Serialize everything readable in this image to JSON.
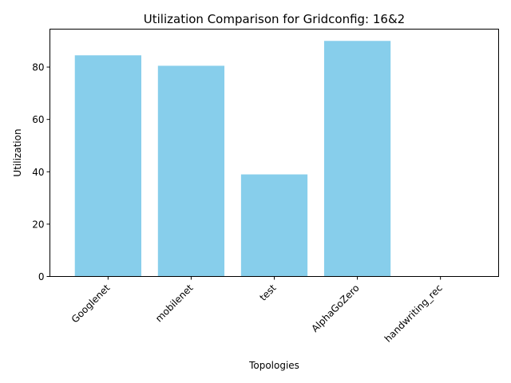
{
  "chart_data": {
    "type": "bar",
    "title": "Utilization Comparison for Gridconfig: 16&2",
    "xlabel": "Topologies",
    "ylabel": "Utilization",
    "categories": [
      "Googlenet",
      "mobilenet",
      "test",
      "AlphaGoZero",
      "handwriting_rec"
    ],
    "values": [
      84.5,
      80.5,
      39.0,
      90.0,
      0
    ],
    "ylim": [
      0,
      94.5
    ],
    "yticks": [
      0,
      20,
      40,
      60,
      80
    ],
    "bar_color": "#87CEEB",
    "grid": false,
    "legend": "none"
  }
}
